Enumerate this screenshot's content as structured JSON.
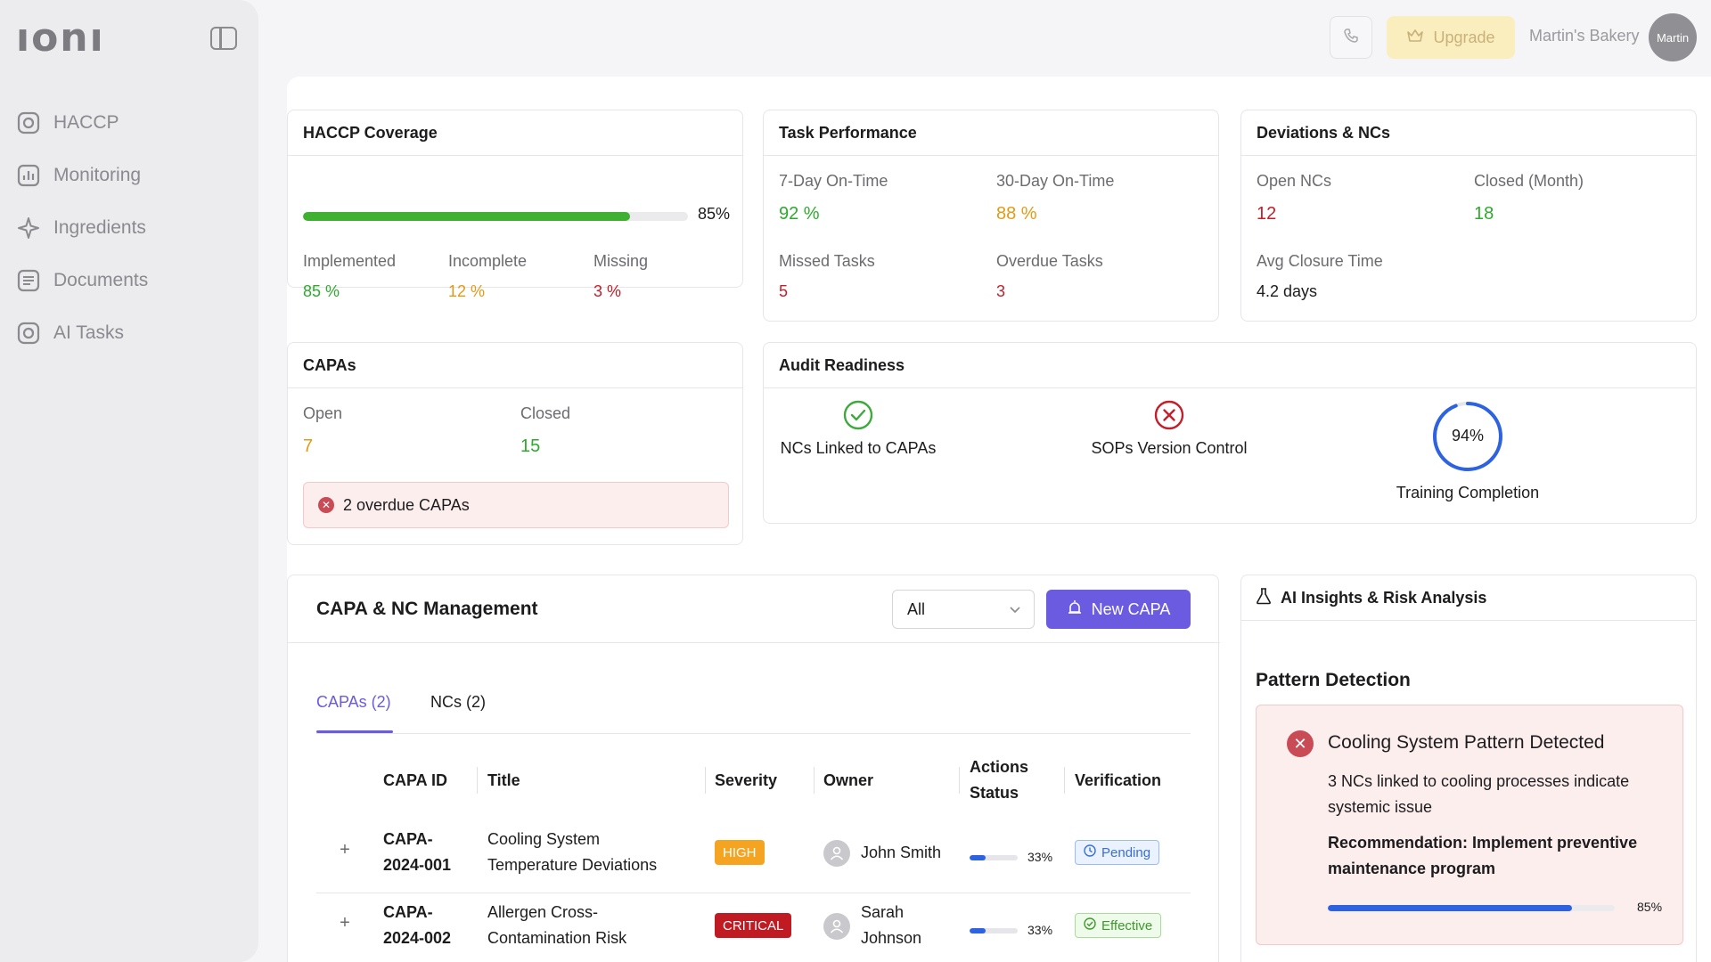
{
  "app": {
    "logo_text": "ıonı"
  },
  "sidebar": {
    "items": [
      {
        "label": "HACCP",
        "icon": "haccp-icon"
      },
      {
        "label": "Monitoring",
        "icon": "chart-icon"
      },
      {
        "label": "Ingredients",
        "icon": "sparkle-icon"
      },
      {
        "label": "Documents",
        "icon": "document-icon"
      },
      {
        "label": "AI Tasks",
        "icon": "ai-tasks-icon"
      }
    ]
  },
  "topbar": {
    "upgrade_label": "Upgrade",
    "org_name": "Martin's Bakery",
    "avatar_label": "Martin"
  },
  "haccp": {
    "title": "HACCP Coverage",
    "progress_pct": 85,
    "progress_label": "85%",
    "implemented_label": "Implemented",
    "implemented_value": "85 %",
    "incomplete_label": "Incomplete",
    "incomplete_value": "12 %",
    "missing_label": "Missing",
    "missing_value": "3 %"
  },
  "tasks": {
    "title": "Task Performance",
    "d7_label": "7-Day On-Time",
    "d7_value": "92 %",
    "d30_label": "30-Day On-Time",
    "d30_value": "88 %",
    "missed_label": "Missed Tasks",
    "missed_value": "5",
    "overdue_label": "Overdue Tasks",
    "overdue_value": "3"
  },
  "deviations": {
    "title": "Deviations & NCs",
    "open_label": "Open NCs",
    "open_value": "12",
    "closed_label": "Closed (Month)",
    "closed_value": "18",
    "avg_label": "Avg Closure Time",
    "avg_value": "4.2 days"
  },
  "capas": {
    "title": "CAPAs",
    "open_label": "Open",
    "open_value": "7",
    "closed_label": "Closed",
    "closed_value": "15",
    "alert": "2 overdue CAPAs"
  },
  "audit": {
    "title": "Audit Readiness",
    "item1": "NCs Linked to CAPAs",
    "item2": "SOPs Version Control",
    "training_label": "Training Completion",
    "training_pct": 94,
    "training_text": "94%"
  },
  "management": {
    "title": "CAPA & NC Management",
    "filter_value": "All",
    "new_button": "New CAPA",
    "tab_capas": "CAPAs (2)",
    "tab_ncs": "NCs (2)",
    "columns": {
      "id": "CAPA ID",
      "title": "Title",
      "severity": "Severity",
      "owner": "Owner",
      "actions_1": "Actions",
      "actions_2": "Status",
      "verification": "Verification"
    },
    "rows": [
      {
        "id_1": "CAPA-",
        "id_2": "2024-001",
        "title_1": "Cooling System",
        "title_2": "Temperature Deviations",
        "severity": "HIGH",
        "owner_1": "John Smith",
        "owner_2": "",
        "progress_pct": 33,
        "progress_label": "33%",
        "verification": "Pending"
      },
      {
        "id_1": "CAPA-",
        "id_2": "2024-002",
        "title_1": "Allergen Cross-",
        "title_2": "Contamination Risk",
        "severity": "CRITICAL",
        "owner_1": "Sarah",
        "owner_2": "Johnson",
        "progress_pct": 33,
        "progress_label": "33%",
        "verification": "Effective"
      }
    ]
  },
  "ai": {
    "title": "AI Insights & Risk Analysis",
    "pattern_section": "Pattern Detection",
    "pattern_title": "Cooling System Pattern Detected",
    "pattern_desc": "3 NCs linked to cooling processes indicate systemic issue",
    "recommendation": "Recommendation: Implement preventive maintenance program",
    "confidence_pct": 85,
    "confidence_label": "85%"
  },
  "colors": {
    "accent": "#6a5be0",
    "green": "#2eaa2e",
    "orange": "#e39a14",
    "red": "#c41e2a",
    "blue": "#2d62e0"
  }
}
